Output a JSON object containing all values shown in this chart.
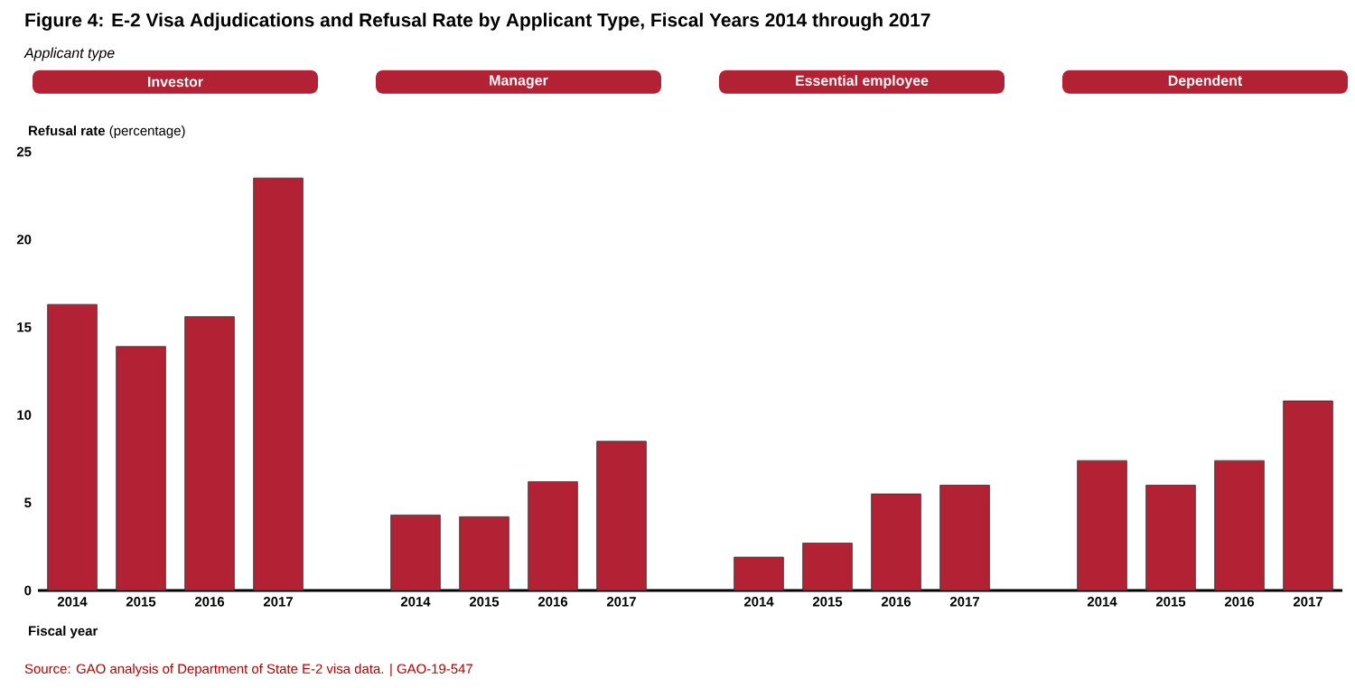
{
  "chart_data": [
    {
      "type": "other",
      "title": "Figure 4: E-2 Visa Adjudications and Refusal Rate by Applicant Type, Fiscal Years 2014 through 2017",
      "subtitle": "Applicant type",
      "annotations": [
        "Source: GAO analysis of Department of State E-2 visa data.  |  GAO-19-547"
      ]
    },
    {
      "type": "bar",
      "title": "Investor",
      "ylabel": "**Refusal rate** (percentage)",
      "xlabel": "Fiscal year",
      "categories": [
        "2014",
        "2015",
        "2016",
        "2017"
      ],
      "values": [
        16.3,
        13.9,
        15.6,
        23.5
      ],
      "color": "#b22234",
      "ylim": [
        0,
        25
      ],
      "yticks": [
        0,
        5,
        10,
        15,
        20,
        25
      ]
    },
    {
      "type": "bar",
      "title": "Manager",
      "categories": [
        "2014",
        "2015",
        "2016",
        "2017"
      ],
      "values": [
        4.3,
        4.2,
        6.2,
        8.5
      ],
      "color": "#b22234",
      "ylim": [
        0,
        25
      ],
      "yticks": [
        0,
        5,
        10,
        15,
        20,
        25
      ],
      "tick_labels": "x"
    },
    {
      "type": "bar",
      "title": "Essential employee",
      "categories": [
        "2014",
        "2015",
        "2016",
        "2017"
      ],
      "values": [
        1.9,
        2.7,
        5.5,
        6.0
      ],
      "color": "#b22234",
      "ylim": [
        0,
        25
      ],
      "yticks": [
        0,
        5,
        10,
        15,
        20,
        25
      ],
      "tick_labels": "x"
    },
    {
      "type": "bar",
      "title": "Dependent",
      "categories": [
        "2014",
        "2015",
        "2016",
        "2017"
      ],
      "values": [
        7.4,
        6.0,
        7.4,
        10.8
      ],
      "color": "#b22234",
      "ylim": [
        0,
        25
      ],
      "yticks": [
        0,
        5,
        10,
        15,
        20,
        25
      ],
      "tick_labels": "x"
    }
  ]
}
